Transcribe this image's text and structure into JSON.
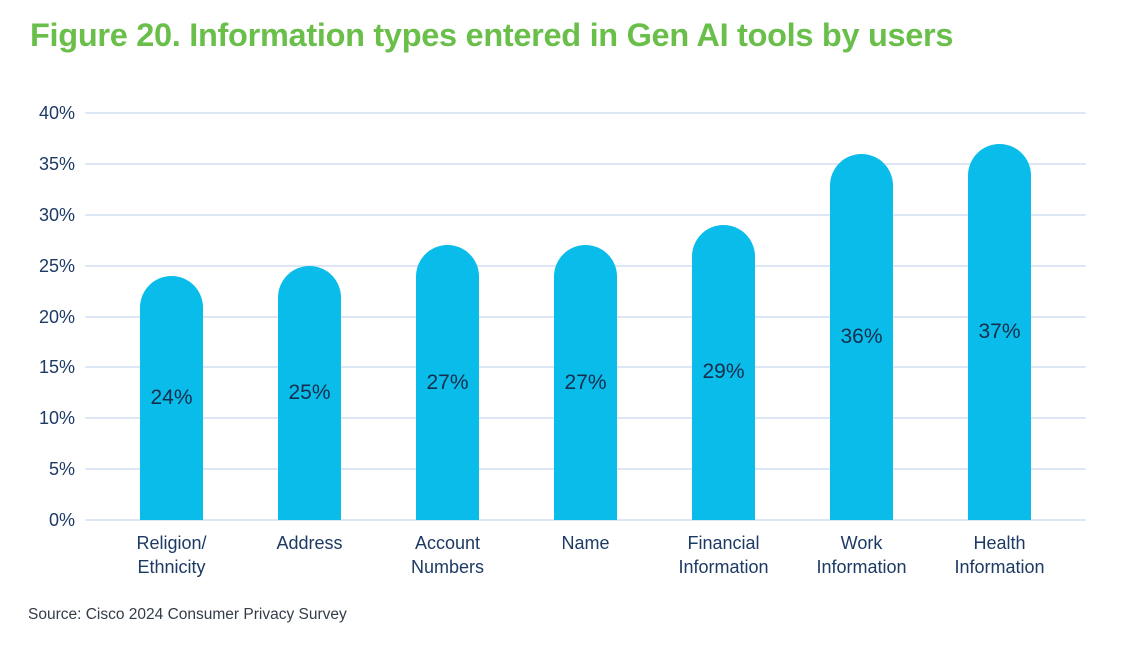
{
  "title": "Figure 20. Information types entered in Gen AI tools by users",
  "source": "Source: Cisco 2024 Consumer Privacy Survey",
  "colors": {
    "title_green": "#6ABF4B",
    "bar_cyan": "#09BCE9",
    "axis_text_navy": "#1C3A63",
    "bar_value_navy": "#142E4D",
    "gridline_blue": "#DCE6F4",
    "source_text": "#333D47",
    "background": "#FFFFFF"
  },
  "chart_data": {
    "type": "bar",
    "title": "Figure 20. Information types entered in Gen AI tools by users",
    "categories": [
      "Religion/\nEthnicity",
      "Address",
      "Account\nNumbers",
      "Name",
      "Financial\nInformation",
      "Work\nInformation",
      "Health\nInformation"
    ],
    "values": [
      24,
      25,
      27,
      27,
      29,
      36,
      37
    ],
    "value_labels": [
      "24%",
      "25%",
      "27%",
      "27%",
      "29%",
      "36%",
      "37%"
    ],
    "xlabel": "",
    "ylabel": "",
    "ylim": [
      0,
      40
    ],
    "ytick_step": 5,
    "ytick_labels": [
      "0%",
      "5%",
      "10%",
      "15%",
      "20%",
      "25%",
      "30%",
      "35%",
      "40%"
    ],
    "grid": true,
    "legend": false,
    "value_label_position": "inside-center",
    "source": "Source: Cisco 2024 Consumer Privacy Survey"
  }
}
